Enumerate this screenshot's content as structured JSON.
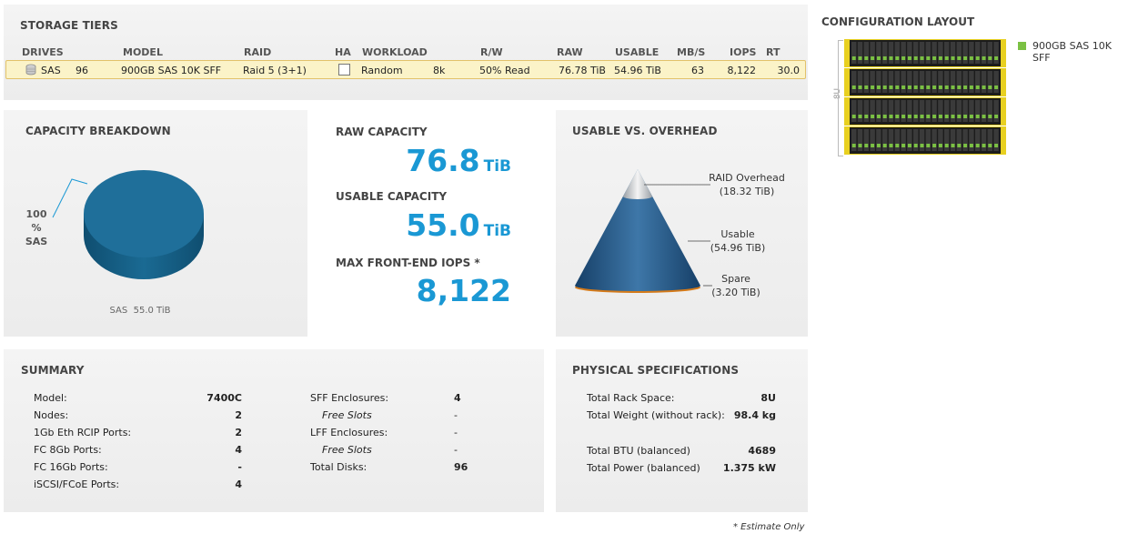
{
  "storage_tiers": {
    "title": "STORAGE TIERS",
    "headers": [
      "DRIVES",
      "MODEL",
      "RAID",
      "HA",
      "WORKLOAD",
      "R/W",
      "RAW",
      "USABLE",
      "MB/S",
      "IOPS",
      "RT (ms)"
    ],
    "row": {
      "drive_type": "SAS",
      "drive_count": "96",
      "model": "900GB SAS 10K SFF",
      "raid": "Raid 5 (3+1)",
      "ha_checked": false,
      "workload": "Random",
      "block_size": "8k",
      "rw": "50% Read",
      "raw": "76.78 TiB",
      "usable": "54.96 TiB",
      "mbs": "63",
      "iops": "8,122",
      "rt": "30.0"
    }
  },
  "capacity_breakdown": {
    "title": "CAPACITY BREAKDOWN",
    "slice_label_pct": "100 %",
    "slice_label_name": "SAS",
    "footer": "SAS  55.0 TiB",
    "color": "#1f6f9a"
  },
  "metrics": {
    "raw_label": "RAW CAPACITY",
    "raw_value": "76.8",
    "raw_unit": "TiB",
    "usable_label": "USABLE CAPACITY",
    "usable_value": "55.0",
    "usable_unit": "TiB",
    "iops_label": "MAX FRONT-END IOPS *",
    "iops_value": "8,122",
    "accent": "#1a98d4"
  },
  "usable_vs_overhead": {
    "title": "USABLE VS. OVERHEAD",
    "raid_label": "RAID Overhead",
    "raid_value": "(18.32 TiB)",
    "usable_label": "Usable",
    "usable_value": "(54.96 TiB)",
    "spare_label": "Spare",
    "spare_value": "(3.20 TiB)"
  },
  "configuration": {
    "title": "CONFIGURATION LAYOUT",
    "rack_units": "8U",
    "legend": "900GB SAS 10K SFF",
    "legend_color": "#7bc143"
  },
  "summary": {
    "title": "SUMMARY",
    "left": [
      {
        "label": "Model:",
        "value": "7400C"
      },
      {
        "label": "Nodes:",
        "value": "2"
      },
      {
        "label": "1Gb Eth RCIP Ports:",
        "value": "2"
      },
      {
        "label": "FC 8Gb Ports:",
        "value": "4"
      },
      {
        "label": "FC 16Gb Ports:",
        "value": "-"
      },
      {
        "label": "iSCSI/FCoE Ports:",
        "value": "4"
      }
    ],
    "right": [
      {
        "label": "SFF Enclosures:",
        "value": "4"
      },
      {
        "label": "Free Slots",
        "value": "-"
      },
      {
        "label": "LFF Enclosures:",
        "value": "-"
      },
      {
        "label": "Free Slots",
        "value": "-"
      },
      {
        "label": "Total Disks:",
        "value": "96"
      }
    ]
  },
  "physical": {
    "title": "PHYSICAL SPECIFICATIONS",
    "rows": [
      {
        "label": "Total Rack Space:",
        "value": "8U"
      },
      {
        "label": "Total Weight (without rack):",
        "value": "98.4 kg"
      },
      {
        "label": "Total BTU (balanced)",
        "value": "4689"
      },
      {
        "label": "Total Power (balanced)",
        "value": "1.375 kW"
      }
    ]
  },
  "footnote": "* Estimate Only"
}
